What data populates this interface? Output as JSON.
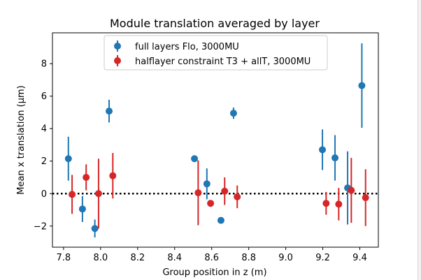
{
  "chart_data": {
    "type": "scatter",
    "title": "Module translation averaged by layer",
    "xlabel": "Group position in z (m)",
    "ylabel": "Mean x translation (μm)",
    "xlim": [
      7.74,
      9.5
    ],
    "ylim": [
      -3.3,
      9.9
    ],
    "xticks": [
      7.8,
      8.0,
      8.2,
      8.4,
      8.6,
      8.8,
      9.0,
      9.2,
      9.4
    ],
    "xtick_labels": [
      "7.8",
      "8.0",
      "8.2",
      "8.4",
      "8.6",
      "8.8",
      "9.0",
      "9.2",
      "9.4"
    ],
    "yticks": [
      -2,
      0,
      2,
      4,
      6,
      8
    ],
    "ytick_labels": [
      "−2",
      "0",
      "2",
      "4",
      "6",
      "8"
    ],
    "grid": false,
    "legend_position": "top-center",
    "reference_line": {
      "y": 0,
      "style": "dotted",
      "color": "#000000"
    },
    "series": [
      {
        "name": "full layers Flo, 3000MU",
        "color": "#1f77b4",
        "points": [
          {
            "x": 7.826,
            "y": 2.15,
            "err": 1.35
          },
          {
            "x": 7.902,
            "y": -0.95,
            "err": 0.8
          },
          {
            "x": 7.969,
            "y": -2.15,
            "err": 0.55
          },
          {
            "x": 8.046,
            "y": 5.08,
            "err": 0.7
          },
          {
            "x": 8.507,
            "y": 2.15,
            "err": 0.0
          },
          {
            "x": 8.574,
            "y": 0.6,
            "err": 0.95
          },
          {
            "x": 8.65,
            "y": -1.65,
            "err": 0.0
          },
          {
            "x": 8.718,
            "y": 4.95,
            "err": 0.35
          },
          {
            "x": 9.198,
            "y": 2.7,
            "err": 1.25
          },
          {
            "x": 9.266,
            "y": 2.2,
            "err": 1.4
          },
          {
            "x": 9.334,
            "y": 0.35,
            "err": 2.25
          },
          {
            "x": 9.411,
            "y": 6.65,
            "err": 2.6
          }
        ]
      },
      {
        "name": "halflayer constraint T3 + allT, 3000MU",
        "color": "#d62728",
        "points": [
          {
            "x": 7.846,
            "y": -0.05,
            "err": 1.2
          },
          {
            "x": 7.922,
            "y": 1.0,
            "err": 0.8
          },
          {
            "x": 7.989,
            "y": 0.0,
            "err": 2.15
          },
          {
            "x": 8.066,
            "y": 1.1,
            "err": 1.4
          },
          {
            "x": 8.527,
            "y": 0.05,
            "err": 2.0
          },
          {
            "x": 8.594,
            "y": -0.6,
            "err": 0.0
          },
          {
            "x": 8.67,
            "y": 0.15,
            "err": 0.85
          },
          {
            "x": 8.738,
            "y": -0.2,
            "err": 0.7
          },
          {
            "x": 9.218,
            "y": -0.6,
            "err": 0.7
          },
          {
            "x": 9.286,
            "y": -0.65,
            "err": 1.0
          },
          {
            "x": 9.354,
            "y": 0.2,
            "err": 2.0
          },
          {
            "x": 9.431,
            "y": -0.25,
            "err": 1.75
          }
        ]
      }
    ]
  }
}
